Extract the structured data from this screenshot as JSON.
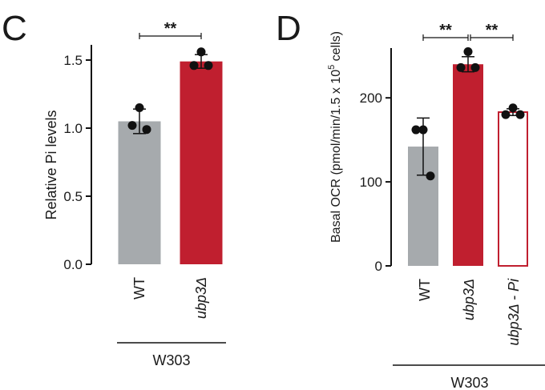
{
  "chart_data": [
    {
      "panel": "C",
      "type": "bar",
      "ylabel": "Relative Pi levels",
      "ylim": [
        0,
        1.6
      ],
      "yticks": [
        "0.0",
        "0.5",
        "1.0",
        "1.5"
      ],
      "categories": [
        "WT",
        "ubp3Δ"
      ],
      "group_label": "W303",
      "values": [
        1.05,
        1.49
      ],
      "errors": [
        0.09,
        0.05
      ],
      "points": [
        [
          1.15,
          1.02,
          0.99
        ],
        [
          1.56,
          1.46,
          1.46
        ]
      ],
      "colors": [
        "#a6aaad",
        "#c01f2f"
      ],
      "filled": [
        true,
        true
      ],
      "significance": [
        {
          "from": 0,
          "to": 1,
          "label": "**"
        }
      ]
    },
    {
      "panel": "D",
      "type": "bar",
      "ylabel": "Basal OCR (pmol/min/1.5 x 10",
      "ylabel_sup": "5",
      "ylabel_end": " cells)",
      "ylim": [
        0,
        265
      ],
      "yticks": [
        "0",
        "100",
        "200"
      ],
      "categories": [
        "WT",
        "ubp3Δ",
        "ubp3Δ - Pi"
      ],
      "group_label": "W303",
      "values": [
        142,
        240,
        183
      ],
      "errors": [
        34,
        9,
        4
      ],
      "points": [
        [
          162,
          162,
          107
        ],
        [
          255,
          236,
          236
        ],
        [
          188,
          180,
          180
        ]
      ],
      "colors": [
        "#a6aaad",
        "#c01f2f",
        "#c01f2f"
      ],
      "filled": [
        true,
        true,
        false
      ],
      "significance": [
        {
          "from": 0,
          "to": 1,
          "label": "**"
        },
        {
          "from": 1,
          "to": 2,
          "label": "**"
        }
      ]
    }
  ]
}
